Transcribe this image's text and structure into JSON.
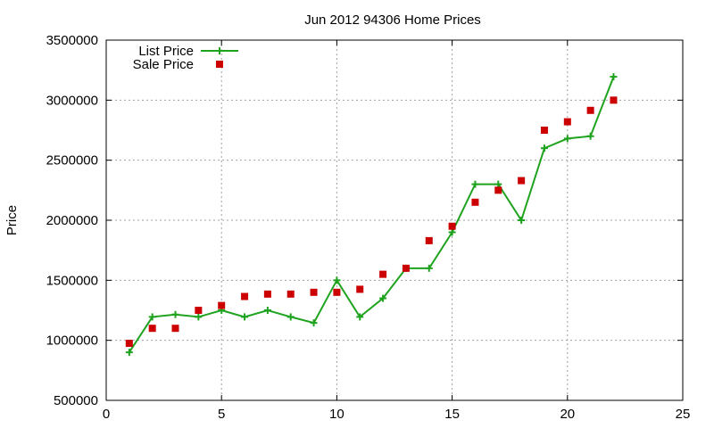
{
  "chart_data": {
    "type": "line",
    "title": "Jun 2012 94306 Home Prices",
    "xlabel": "",
    "ylabel": "Price",
    "xlim": [
      0,
      25
    ],
    "ylim": [
      500000,
      3500000
    ],
    "xticks": [
      0,
      5,
      10,
      15,
      20,
      25
    ],
    "yticks": [
      500000,
      1000000,
      1500000,
      2000000,
      2500000,
      3000000,
      3500000
    ],
    "grid": true,
    "legend_position": "top-left",
    "series": [
      {
        "name": "List Price",
        "style": "line+cross",
        "color": "#1fa31f",
        "points": [
          [
            1,
            900000
          ],
          [
            2,
            1195000
          ],
          [
            3,
            1215000
          ],
          [
            4,
            1195000
          ],
          [
            5,
            1250000
          ],
          [
            6,
            1195000
          ],
          [
            7,
            1250000
          ],
          [
            8,
            1195000
          ],
          [
            9,
            1145000
          ],
          [
            10,
            1500000
          ],
          [
            11,
            1195000
          ],
          [
            12,
            1350000
          ],
          [
            13,
            1600000
          ],
          [
            14,
            1600000
          ],
          [
            15,
            1900000
          ],
          [
            16,
            2300000
          ],
          [
            17,
            2300000
          ],
          [
            18,
            2000000
          ],
          [
            19,
            2600000
          ],
          [
            20,
            2680000
          ],
          [
            21,
            2700000
          ],
          [
            22,
            3195000
          ]
        ]
      },
      {
        "name": "Sale Price",
        "style": "square",
        "color": "#cc0000",
        "points": [
          [
            1,
            975000
          ],
          [
            2,
            1100000
          ],
          [
            3,
            1100000
          ],
          [
            4,
            1250000
          ],
          [
            5,
            1290000
          ],
          [
            6,
            1365000
          ],
          [
            7,
            1385000
          ],
          [
            8,
            1385000
          ],
          [
            9,
            1400000
          ],
          [
            10,
            1400000
          ],
          [
            11,
            1425000
          ],
          [
            12,
            1550000
          ],
          [
            13,
            1600000
          ],
          [
            14,
            1830000
          ],
          [
            15,
            1950000
          ],
          [
            16,
            2150000
          ],
          [
            17,
            2250000
          ],
          [
            18,
            2330000
          ],
          [
            19,
            2750000
          ],
          [
            20,
            2820000
          ],
          [
            21,
            2915000
          ],
          [
            22,
            3000000
          ]
        ]
      }
    ]
  }
}
